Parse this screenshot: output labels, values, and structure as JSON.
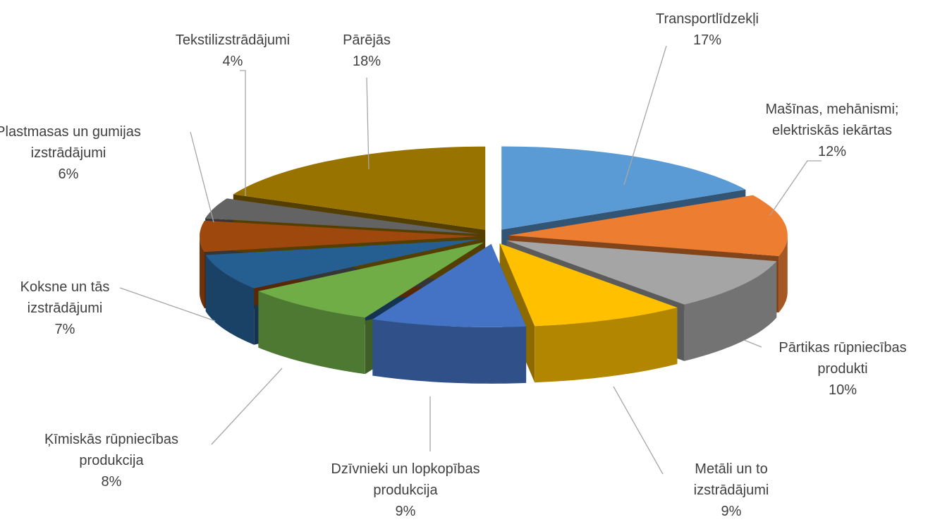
{
  "chart_data": {
    "type": "pie",
    "categories": [
      "Transportlīdzekļi",
      "Mašīnas, mehānismi; elektriskās iekārtas",
      "Pārtikas rūpniecības produkti",
      "Metāli un to izstrādājumi",
      "Dzīvnieki un lopkopības produkcija",
      "Ķīmiskās rūpniecības produkcija",
      "Koksne un tās izstrādājumi",
      "Plastmasas un gumijas izstrādājumi",
      "Tekstilizstrādājumi",
      "Pārējās"
    ],
    "values": [
      17,
      12,
      10,
      9,
      9,
      8,
      7,
      6,
      4,
      18
    ],
    "value_labels": [
      "17%",
      "12%",
      "10%",
      "9%",
      "9%",
      "8%",
      "7%",
      "6%",
      "4%",
      "18%"
    ],
    "colors": [
      "#5b9bd5",
      "#ed7d31",
      "#a5a5a5",
      "#ffc000",
      "#4472c4",
      "#70ad47",
      "#255e91",
      "#9e480e",
      "#636363",
      "#997300"
    ]
  }
}
